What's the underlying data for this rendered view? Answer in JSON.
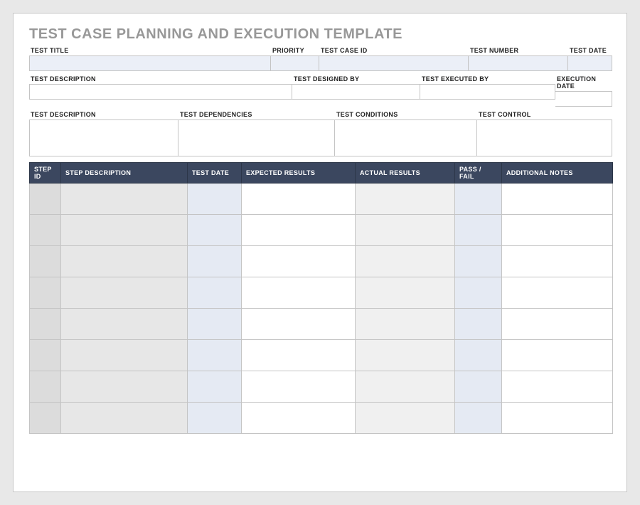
{
  "title": "TEST CASE PLANNING AND EXECUTION TEMPLATE",
  "colors": {
    "page_bg": "#e8e8e8",
    "sheet_bg": "#ffffff",
    "title_color": "#989898",
    "border": "#c4c4c4",
    "box_blue": "#ebeff7",
    "header_bg": "#3b475f",
    "header_text": "#ffffff",
    "cell_grey_dark": "#dcdcdc",
    "cell_grey": "#e7e7e7",
    "cell_blue": "#e5eaf3",
    "cell_white": "#ffffff",
    "cell_lightgrey": "#f0f0f0"
  },
  "typography": {
    "title_fontsize": 20,
    "label_fontsize": 9,
    "header_fontsize": 9
  },
  "row1": {
    "test_title": {
      "label": "TEST TITLE",
      "value": ""
    },
    "priority": {
      "label": "PRIORITY",
      "value": ""
    },
    "test_case_id": {
      "label": "TEST CASE ID",
      "value": ""
    },
    "test_number": {
      "label": "TEST NUMBER",
      "value": ""
    },
    "test_date": {
      "label": "TEST DATE",
      "value": ""
    }
  },
  "row2": {
    "test_description": {
      "label": "TEST DESCRIPTION",
      "value": ""
    },
    "test_designed_by": {
      "label": "TEST DESIGNED BY",
      "value": ""
    },
    "test_executed_by": {
      "label": "TEST EXECUTED BY",
      "value": ""
    },
    "execution_date": {
      "label": "EXECUTION DATE",
      "value": ""
    }
  },
  "row3": {
    "test_description": {
      "label": "TEST DESCRIPTION",
      "value": ""
    },
    "test_dependencies": {
      "label": "TEST DEPENDENCIES",
      "value": ""
    },
    "test_conditions": {
      "label": "TEST CONDITIONS",
      "value": ""
    },
    "test_control": {
      "label": "TEST CONTROL",
      "value": ""
    }
  },
  "steps_table": {
    "columns": [
      "STEP ID",
      "STEP DESCRIPTION",
      "TEST DATE",
      "EXPECTED RESULTS",
      "ACTUAL RESULTS",
      "PASS / FAIL",
      "ADDITIONAL NOTES"
    ],
    "column_bg": [
      "bg1",
      "bg2",
      "bg3",
      "bg4",
      "bg5",
      "bg3",
      "bg4"
    ],
    "row_count": 8
  }
}
